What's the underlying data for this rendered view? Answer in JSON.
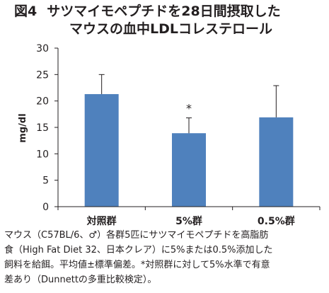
{
  "figure_label": "図4",
  "title_line1": "サツマイモペプチドを28日間摂取した",
  "title_line2": "マウスの血中LDLコレステロール",
  "chart_data": {
    "type": "bar",
    "categories": [
      "対照群",
      "5%群",
      "0.5%群"
    ],
    "values": [
      21.3,
      13.9,
      16.9
    ],
    "errors": [
      3.7,
      2.9,
      6.0
    ],
    "annotations": [
      "",
      "*",
      ""
    ],
    "ylabel": "mg/dl",
    "ylim": [
      0,
      30
    ],
    "yticks": [
      "0",
      "5",
      "10",
      "15",
      "20",
      "25",
      "30"
    ],
    "grid": false,
    "bar_color": "#4f81bd"
  },
  "caption_lines": [
    "マウス（C57BL/6、♂）各群5匹にサツマイモペプチドを高脂肪",
    "食（High Fat Diet 32、日本クレア）に5%または0.5%添加した",
    "飼料を給餌。平均値±標準偏差。*対照群に対して5%水準で有意",
    "差あり（Dunnettの多重比較検定）。"
  ]
}
